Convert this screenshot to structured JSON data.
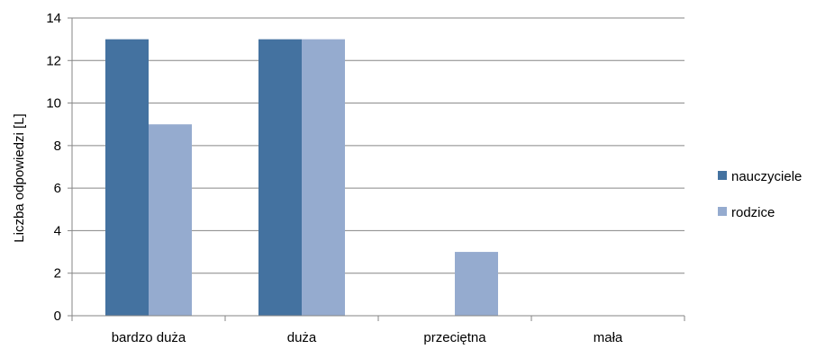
{
  "chart_data": {
    "type": "bar",
    "title": "",
    "xlabel": "",
    "ylabel": "Liczba odpowiedzi [L]",
    "categories": [
      "bardzo duża",
      "duża",
      "przeciętna",
      "mała"
    ],
    "series": [
      {
        "name": "nauczyciele",
        "color": "#4472a0",
        "values": [
          13,
          13,
          0,
          0
        ]
      },
      {
        "name": "rodzice",
        "color": "#95abcf",
        "values": [
          9,
          13,
          3,
          0
        ]
      }
    ],
    "ylim": [
      0,
      14
    ],
    "yticks": [
      0,
      2,
      4,
      6,
      8,
      10,
      12,
      14
    ],
    "grid": true,
    "legend_position": "right"
  }
}
